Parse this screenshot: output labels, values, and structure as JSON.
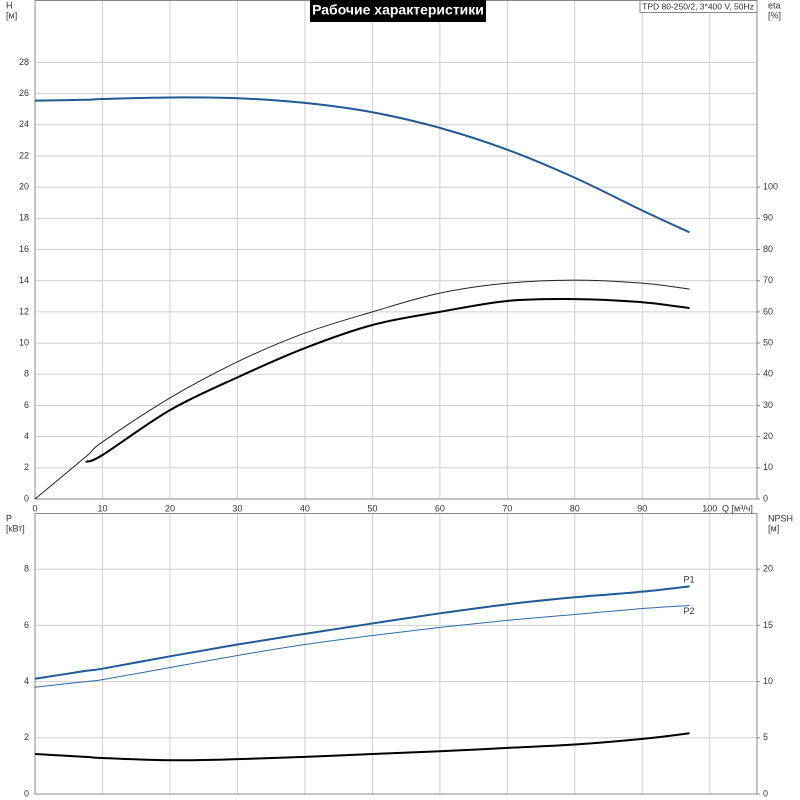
{
  "chart_data": [
    {
      "type": "line",
      "title": "Рабочие характеристики",
      "annotation": "TPD 80-250/2, 3*400 V, 50Hz",
      "ylabel": "H",
      "ylabel_unit": "[м]",
      "y2label": "eta",
      "y2label_unit": "[%]",
      "xlabel": "Q [м³/ч]",
      "x": [
        0,
        7.5,
        10,
        20,
        30,
        40,
        50,
        60,
        70,
        80,
        90,
        97
      ],
      "xlim": [
        0,
        107
      ],
      "xticks": [
        0,
        10,
        20,
        30,
        40,
        50,
        60,
        70,
        80,
        90,
        100
      ],
      "show_xtick_labels": true,
      "ylim": [
        0,
        32
      ],
      "yticks": [
        0,
        2,
        4,
        6,
        8,
        10,
        12,
        14,
        16,
        18,
        20,
        22,
        24,
        26,
        28
      ],
      "y2lim": [
        0,
        160
      ],
      "y2ticks": [
        0,
        10,
        20,
        30,
        40,
        50,
        60,
        70,
        80,
        90,
        100
      ],
      "grid": true,
      "series": [
        {
          "color": "#1f5a96",
          "width": 2,
          "values": [
            25.55,
            25.6,
            25.65,
            25.75,
            25.7,
            25.4,
            24.8,
            23.8,
            22.4,
            20.6,
            18.5,
            17.1
          ]
        },
        {
          "color": "#222222",
          "width": 1,
          "axis": "y2",
          "values": [
            0,
            13.5,
            18.3,
            32.4,
            44,
            53.2,
            60,
            66,
            69.2,
            70.2,
            69.2,
            67.3
          ]
        },
        {
          "color": "#000000",
          "width": 2,
          "axis": "y2",
          "values": [
            null,
            11.9,
            14.1,
            28.5,
            39,
            48.4,
            55.8,
            60,
            63.5,
            64.1,
            63.1,
            61.2
          ]
        }
      ]
    },
    {
      "type": "line",
      "ylabel": "P",
      "ylabel_unit": "[кВт]",
      "y2label": "NPSH",
      "y2label_unit": "[м]",
      "x": [
        0,
        7.5,
        10,
        20,
        30,
        40,
        50,
        60,
        70,
        80,
        90,
        97
      ],
      "xlim": [
        0,
        107
      ],
      "xticks": [
        0,
        10,
        20,
        30,
        40,
        50,
        60,
        70,
        80,
        90,
        100
      ],
      "show_xtick_labels": false,
      "ylim": [
        0,
        10
      ],
      "yticks": [
        0,
        2,
        4,
        6,
        8
      ],
      "y2lim": [
        0,
        25
      ],
      "y2ticks": [
        0,
        5,
        10,
        15,
        20
      ],
      "grid": true,
      "series": [
        {
          "name": "P1",
          "color": "#1f5a96",
          "width": 2,
          "values": [
            4.1,
            4.38,
            4.46,
            4.9,
            5.32,
            5.7,
            6.07,
            6.43,
            6.75,
            7.0,
            7.2,
            7.39
          ]
        },
        {
          "name": "P2",
          "color": "#2f6aa6",
          "width": 1,
          "values": [
            3.8,
            4.0,
            4.07,
            4.5,
            4.93,
            5.32,
            5.64,
            5.93,
            6.18,
            6.39,
            6.6,
            6.71
          ]
        },
        {
          "color": "#000000",
          "width": 2,
          "axis": "y2",
          "values": [
            3.56,
            3.3,
            3.2,
            3.0,
            3.1,
            3.3,
            3.56,
            3.8,
            4.1,
            4.4,
            4.9,
            5.4
          ]
        }
      ]
    }
  ]
}
